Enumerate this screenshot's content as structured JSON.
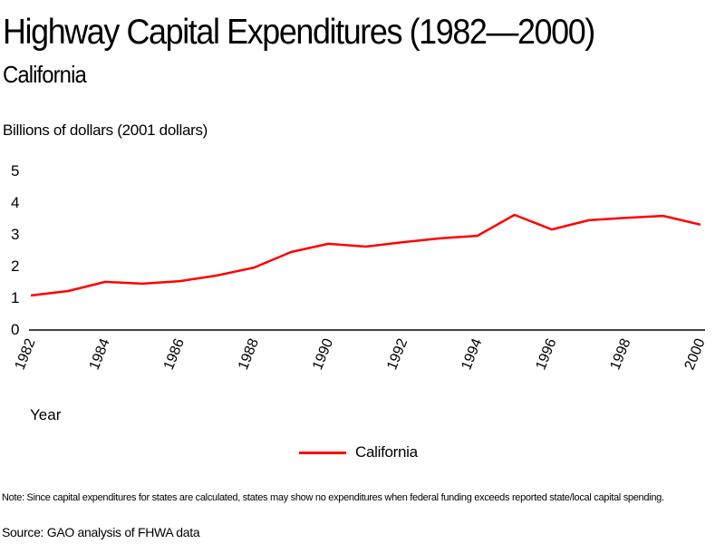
{
  "chart_data": {
    "type": "line",
    "title": "Highway Capital Expenditures (1982—2000)",
    "subtitle": "California",
    "ylabel": "Billions of dollars (2001 dollars)",
    "xlabel": "Year",
    "ylim": [
      0,
      5
    ],
    "xlim": [
      1982,
      2000
    ],
    "y_ticks": [
      "0",
      "1",
      "2",
      "3",
      "4",
      "5"
    ],
    "x_ticks": [
      "1982",
      "1984",
      "1986",
      "1988",
      "1990",
      "1992",
      "1994",
      "1996",
      "1998",
      "2000"
    ],
    "grid": false,
    "legend_position": "bottom-center",
    "x": [
      1982,
      1983,
      1984,
      1985,
      1986,
      1987,
      1988,
      1989,
      1990,
      1991,
      1992,
      1993,
      1994,
      1995,
      1996,
      1997,
      1998,
      1999,
      2000
    ],
    "series": [
      {
        "name": "California",
        "color": "#ff0000",
        "values": [
          1.06,
          1.2,
          1.49,
          1.43,
          1.51,
          1.69,
          1.94,
          2.43,
          2.69,
          2.6,
          2.74,
          2.86,
          2.94,
          3.6,
          3.14,
          3.43,
          3.51,
          3.57,
          3.29
        ]
      }
    ]
  },
  "footer": {
    "note": "Note: Since capital expenditures for states are calculated, states may show no expenditures when federal funding exceeds reported state/local capital spending.",
    "source": "Source: GAO analysis of FHWA data"
  }
}
